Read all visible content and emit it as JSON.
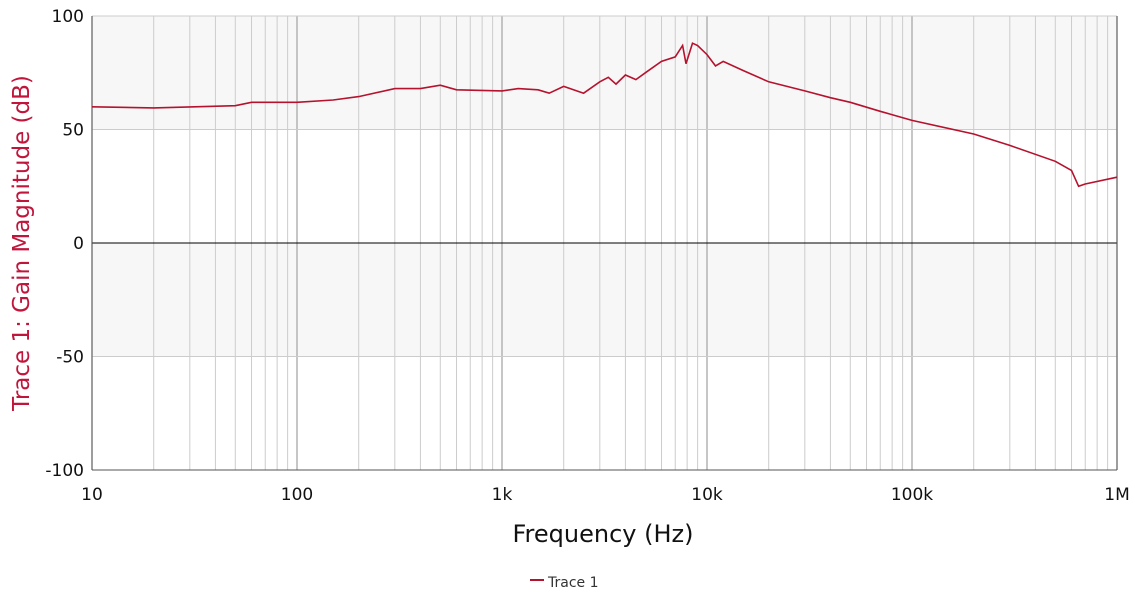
{
  "chart_data": {
    "type": "line",
    "title": "",
    "xlabel": "Frequency (Hz)",
    "ylabel": "Trace 1: Gain Magnitude (dB)",
    "xscale": "log",
    "xlim": [
      10,
      1000000
    ],
    "ylim": [
      -100,
      100
    ],
    "x_ticks": [
      10,
      100,
      1000,
      10000,
      100000,
      1000000
    ],
    "x_tick_labels": [
      "10",
      "100",
      "1k",
      "10k",
      "100k",
      "1M"
    ],
    "y_ticks": [
      -100,
      -50,
      0,
      50,
      100
    ],
    "y_tick_labels": [
      "-100",
      "-50",
      "0",
      "50",
      "100"
    ],
    "grid": true,
    "legend_position": "bottom-center",
    "colors": {
      "trace": "#b5122e",
      "ylabel": "#c0163c",
      "band": "#f7f7f7",
      "grid": "#cccccc"
    },
    "series": [
      {
        "name": "Trace 1",
        "x": [
          10,
          20,
          50,
          60,
          100,
          150,
          200,
          300,
          400,
          500,
          600,
          1000,
          1200,
          1500,
          1700,
          2000,
          2500,
          3000,
          3300,
          3600,
          4000,
          4500,
          5000,
          6000,
          7000,
          7600,
          7900,
          8500,
          9000,
          10000,
          11000,
          12000,
          15000,
          20000,
          30000,
          40000,
          50000,
          70000,
          100000,
          200000,
          300000,
          500000,
          600000,
          650000,
          700000,
          1000000
        ],
        "y": [
          60,
          59.5,
          60.5,
          62,
          62,
          63,
          64.5,
          68,
          68,
          69.5,
          67.5,
          67,
          68,
          67.5,
          66,
          69,
          66,
          71,
          73,
          70,
          74,
          72,
          75,
          80,
          82,
          87,
          79,
          88,
          87,
          83,
          78,
          80,
          76,
          71,
          67,
          64,
          62,
          58,
          54,
          48,
          43,
          36,
          32,
          25,
          26,
          29
        ]
      }
    ]
  }
}
